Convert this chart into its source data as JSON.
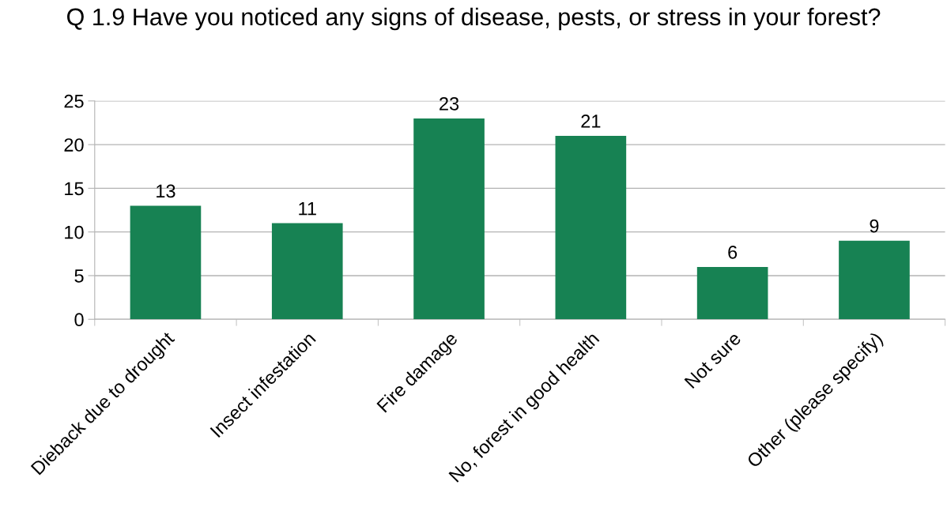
{
  "chart_data": {
    "type": "bar",
    "title": "Q 1.9 Have you noticed any signs of disease, pests, or stress in your forest?",
    "categories": [
      "Dieback due to drought",
      "Insect infestation",
      "Fire damage",
      "No, forest in good health",
      "Not sure",
      "Other (please specify)"
    ],
    "values": [
      13,
      11,
      23,
      21,
      6,
      9
    ],
    "color": "#178253",
    "ylim": [
      0,
      25
    ],
    "yticks": [
      0,
      5,
      10,
      15,
      20,
      25
    ],
    "grid": "y",
    "data_labels": true
  }
}
